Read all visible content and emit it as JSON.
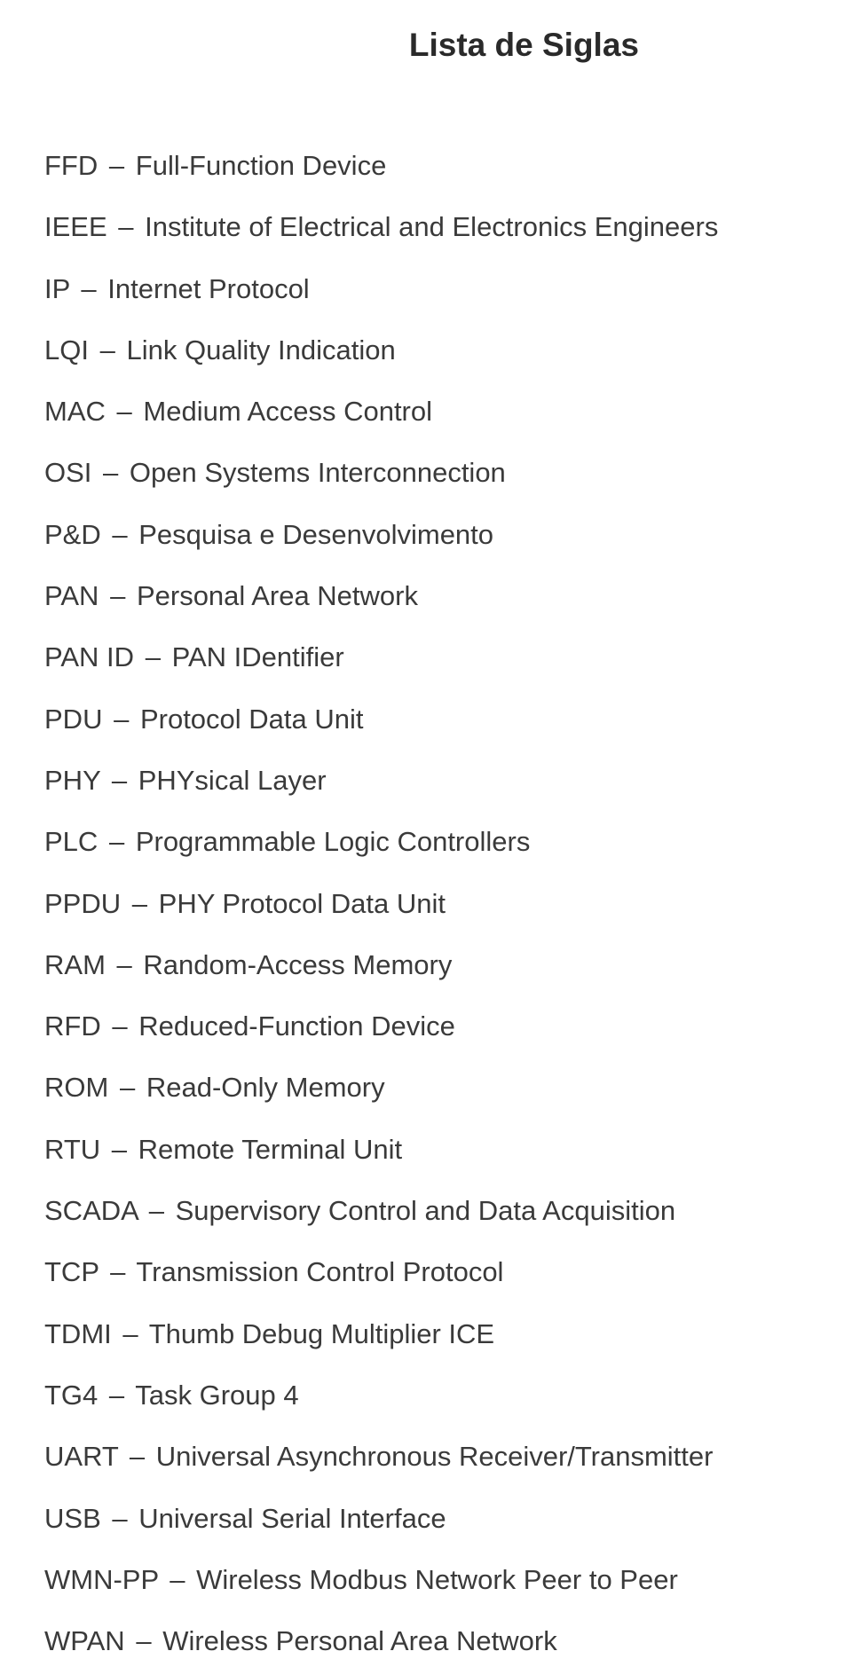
{
  "title": "Lista de Siglas",
  "title_fontsize": 37,
  "entry_fontsize": 31,
  "text_color": "#3a3a3a",
  "background_color": "#ffffff",
  "font_family": "Arial",
  "dash": "–",
  "entries": [
    {
      "abbr": "FFD",
      "def": "Full-Function Device"
    },
    {
      "abbr": "IEEE",
      "def": "Institute of Electrical and Electronics Engineers"
    },
    {
      "abbr": "IP",
      "def": "Internet Protocol"
    },
    {
      "abbr": "LQI",
      "def": "Link Quality Indication"
    },
    {
      "abbr": "MAC",
      "def": "Medium Access Control"
    },
    {
      "abbr": "OSI",
      "def": "Open Systems Interconnection"
    },
    {
      "abbr": "P&D",
      "def": "Pesquisa e Desenvolvimento"
    },
    {
      "abbr": "PAN",
      "def": "Personal Area Network"
    },
    {
      "abbr": "PAN ID",
      "def": "PAN IDentifier"
    },
    {
      "abbr": "PDU",
      "def": "Protocol Data Unit"
    },
    {
      "abbr": "PHY",
      "def": "PHYsical Layer"
    },
    {
      "abbr": "PLC",
      "def": "Programmable Logic Controllers"
    },
    {
      "abbr": "PPDU",
      "def": "PHY Protocol Data Unit"
    },
    {
      "abbr": "RAM",
      "def": "Random-Access Memory"
    },
    {
      "abbr": "RFD",
      "def": "Reduced-Function Device"
    },
    {
      "abbr": "ROM",
      "def": "Read-Only Memory"
    },
    {
      "abbr": "RTU",
      "def": "Remote Terminal Unit"
    },
    {
      "abbr": "SCADA",
      "def": "Supervisory Control and Data Acquisition"
    },
    {
      "abbr": "TCP",
      "def": "Transmission Control Protocol"
    },
    {
      "abbr": "TDMI",
      "def": "Thumb Debug Multiplier ICE"
    },
    {
      "abbr": "TG4",
      "def": "Task Group 4"
    },
    {
      "abbr": "UART",
      "def": "Universal Asynchronous Receiver/Transmitter"
    },
    {
      "abbr": "USB",
      "def": "Universal Serial Interface"
    },
    {
      "abbr": "WMN-PP",
      "def": "Wireless Modbus Network Peer to Peer"
    },
    {
      "abbr": "WPAN",
      "def": "Wireless Personal Area Network"
    }
  ]
}
